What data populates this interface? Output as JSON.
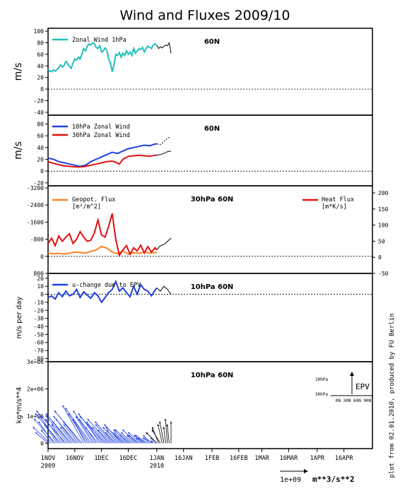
{
  "title": "Wind and Fluxes 2009/10",
  "credit": "plot from 02.01.2010, produced by FU Berlin",
  "x_axis": {
    "ticks": [
      "1NOV",
      "16NOV",
      "1DEC",
      "16DEC",
      "1JAN",
      "16JAN",
      "1FEB",
      "16FEB",
      "1MAR",
      "16MAR",
      "1APR",
      "16APR"
    ],
    "year_labels": [
      "2009",
      "2010"
    ]
  },
  "colors": {
    "cyan": "#22c0bc",
    "blue": "#2040e0",
    "red": "#e01010",
    "orange": "#ff8020",
    "black": "#000000"
  },
  "chart_data": [
    {
      "type": "line",
      "panel_label": "60N",
      "ylabel": "m/s",
      "ylim": [
        -45,
        105
      ],
      "yticks": [
        100,
        80,
        60,
        40,
        20,
        0,
        -20,
        -40
      ],
      "zero_line": "dashed",
      "legend": [
        "Zonal Wind 1hPa"
      ],
      "series": [
        {
          "name": "Zonal Wind 1hPa",
          "color": "cyan",
          "x": [
            0,
            1,
            2,
            3,
            4,
            5,
            6,
            7,
            8,
            9,
            10,
            11,
            12,
            13,
            14,
            15,
            16,
            17,
            18,
            19,
            20,
            21,
            22,
            23,
            24,
            25,
            26,
            27,
            28,
            29,
            30,
            31,
            32,
            33,
            34,
            35,
            36,
            37,
            38,
            39,
            40,
            41,
            42,
            43,
            44,
            45,
            46,
            47,
            48,
            49,
            50,
            51,
            52,
            53,
            54,
            55,
            56,
            57,
            58,
            59,
            60,
            61
          ],
          "values": [
            34,
            31,
            30,
            33,
            31,
            34,
            37,
            42,
            38,
            41,
            48,
            44,
            39,
            36,
            45,
            52,
            50,
            55,
            52,
            60,
            70,
            66,
            74,
            78,
            76,
            80,
            78,
            72,
            70,
            75,
            64,
            66,
            71,
            67,
            52,
            45,
            30,
            42,
            60,
            58,
            63,
            55,
            62,
            58,
            66,
            60,
            64,
            58,
            70,
            62,
            66,
            70,
            68,
            72,
            64,
            70,
            74,
            72,
            70,
            76,
            78,
            76
          ]
        },
        {
          "name": "forecast",
          "color": "black",
          "x": [
            61,
            62,
            63,
            64,
            65,
            66,
            67,
            68,
            69
          ],
          "values": [
            76,
            70,
            73,
            71,
            74,
            76,
            75,
            80,
            62
          ]
        }
      ]
    },
    {
      "type": "line",
      "panel_label": "60N",
      "ylabel": "m/s",
      "ylim": [
        -25,
        95
      ],
      "yticks": [
        80,
        60,
        40,
        20,
        0,
        -20
      ],
      "zero_line": "dashed",
      "legend": [
        "10hPa Zonal Wind",
        "30hPa Zonal Wind"
      ],
      "series": [
        {
          "name": "10hPa Zonal Wind",
          "color": "blue",
          "x": [
            0,
            3,
            6,
            9,
            12,
            15,
            18,
            21,
            24,
            27,
            30,
            33,
            36,
            39,
            42,
            45,
            48,
            51,
            54,
            57,
            60,
            61
          ],
          "values": [
            22,
            20,
            16,
            14,
            12,
            10,
            8,
            10,
            16,
            20,
            24,
            28,
            32,
            30,
            34,
            38,
            40,
            42,
            44,
            43,
            46,
            46
          ]
        },
        {
          "name": "30hPa Zonal Wind",
          "color": "red",
          "x": [
            0,
            3,
            6,
            9,
            12,
            15,
            18,
            21,
            24,
            27,
            30,
            33,
            36,
            38,
            40,
            42,
            45,
            48,
            51,
            54,
            57,
            60,
            61
          ],
          "values": [
            16,
            13,
            11,
            9,
            8,
            7,
            7,
            8,
            10,
            12,
            14,
            16,
            17,
            15,
            12,
            20,
            25,
            26,
            27,
            26,
            25,
            27,
            27
          ]
        },
        {
          "name": "10hPa forecast",
          "color": "black",
          "x": [
            61,
            63,
            65,
            67,
            69
          ],
          "values": [
            46,
            45,
            50,
            56,
            58
          ],
          "dash": true
        },
        {
          "name": "30hPa forecast",
          "color": "black",
          "x": [
            61,
            63,
            65,
            67,
            69
          ],
          "values": [
            27,
            28,
            30,
            33,
            34
          ]
        }
      ]
    },
    {
      "type": "line",
      "panel_label": "30hPa 60N",
      "ylim": [
        -3300,
        800
      ],
      "y_inverted": true,
      "yticks": [
        -3200,
        -2400,
        -1600,
        -800,
        0,
        800
      ],
      "yticks_right": [
        200,
        150,
        100,
        50,
        0,
        -50
      ],
      "legend": [
        "Geopot. Flux [m²/m²]",
        "Heat Flux [m*K/s]"
      ],
      "legend_text": {
        "geopot": [
          "Geopot. Flux",
          "[m²/m^2]"
        ],
        "heat": [
          "Heat Flux",
          "[m*K/s]"
        ]
      },
      "series": [
        {
          "name": "Geopot. Flux",
          "color": "orange",
          "x": [
            0,
            3,
            6,
            9,
            12,
            15,
            18,
            21,
            24,
            27,
            30,
            33,
            36,
            39,
            42,
            45,
            48,
            51,
            54,
            57,
            60,
            61
          ],
          "values": [
            -160,
            -120,
            -140,
            -110,
            -150,
            -200,
            -180,
            -150,
            -230,
            -300,
            -460,
            -380,
            -200,
            -120,
            -260,
            -100,
            -170,
            -140,
            -200,
            -150,
            -180,
            -200
          ]
        },
        {
          "name": "Heat Flux",
          "color": "red",
          "x": [
            0,
            2,
            4,
            6,
            8,
            10,
            12,
            14,
            16,
            18,
            20,
            22,
            24,
            26,
            28,
            30,
            32,
            34,
            36,
            38,
            40,
            42,
            44,
            46,
            48,
            50,
            52,
            54,
            56,
            58,
            60,
            61
          ],
          "values": [
            -600,
            -850,
            -500,
            -950,
            -700,
            -900,
            -1050,
            -600,
            -800,
            -1150,
            -900,
            -700,
            -750,
            -1100,
            -1700,
            -1000,
            -900,
            -1400,
            -2000,
            -800,
            -50,
            -300,
            -500,
            -100,
            -400,
            -250,
            -520,
            -160,
            -450,
            -200,
            -400,
            -300
          ]
        },
        {
          "name": "forecast",
          "color": "black",
          "x": [
            61,
            63,
            65,
            67,
            69
          ],
          "values": [
            -300,
            -500,
            -550,
            -700,
            -850
          ]
        }
      ]
    },
    {
      "type": "line",
      "panel_label": "10hPa 60N",
      "ylabel": "m/s per day",
      "ylim": [
        -84,
        26
      ],
      "yticks": [
        20,
        10,
        0,
        -10,
        -20,
        -30,
        -40,
        -50,
        -60,
        -70,
        -80
      ],
      "legend": [
        "u-change due to EPV"
      ],
      "series": [
        {
          "name": "u-change due to EPV",
          "color": "blue",
          "x": [
            0,
            2,
            4,
            6,
            8,
            10,
            12,
            14,
            16,
            18,
            20,
            22,
            24,
            26,
            28,
            30,
            32,
            34,
            36,
            38,
            40,
            42,
            44,
            46,
            48,
            50,
            52,
            54,
            56,
            58,
            60,
            61
          ],
          "values": [
            -4,
            -2,
            -6,
            2,
            -3,
            4,
            -2,
            0,
            6,
            -4,
            3,
            -1,
            -5,
            2,
            -2,
            -10,
            -4,
            2,
            6,
            16,
            4,
            8,
            2,
            -3,
            10,
            0,
            12,
            6,
            4,
            -2,
            5,
            8
          ]
        },
        {
          "name": "forecast",
          "color": "black",
          "x": [
            61,
            63,
            65,
            67,
            69
          ],
          "values": [
            8,
            4,
            10,
            6,
            0
          ]
        }
      ]
    },
    {
      "type": "vector",
      "panel_label": "10hPa 60N",
      "ylabel": "kg*m/s**4",
      "ylim": [
        -200000,
        3000000
      ],
      "yticks": [
        0,
        1000000,
        2000000,
        3000000
      ],
      "ytick_labels": [
        "0",
        "1e+06",
        "2e+06",
        "3e+06"
      ],
      "inset": {
        "title": "EPV",
        "ylabels": [
          "10hPa",
          "30hPa"
        ],
        "xlabel": "0N 30N 60N 90N"
      },
      "reference_vector": {
        "label": "1e+09",
        "units": "m**3/s**2"
      },
      "series": [
        {
          "name": "EPV",
          "color": "blue",
          "x": [
            0,
            1,
            2,
            3,
            4,
            5,
            6,
            7,
            8,
            9,
            10,
            11,
            12,
            13,
            14,
            15,
            16,
            17,
            18,
            19,
            20,
            21,
            22,
            23,
            24,
            25,
            26,
            27,
            28,
            29,
            30,
            31,
            32,
            33,
            34,
            35,
            36,
            37,
            38,
            39,
            40,
            41,
            42,
            43,
            44,
            45,
            46,
            47,
            48,
            49,
            50,
            51,
            52,
            53,
            54,
            55,
            56,
            57,
            58,
            59,
            60,
            61
          ],
          "u": [
            -6,
            -8,
            -5,
            -7,
            -10,
            -6,
            -9,
            -12,
            -8,
            -6,
            -14,
            -10,
            -8,
            -12,
            -6,
            -9,
            -11,
            -7,
            -8,
            -13,
            -10,
            -6,
            -9,
            -7,
            -12,
            -8,
            -10,
            -5,
            -9,
            -6,
            -11,
            -8,
            -12,
            -7,
            -10,
            -6,
            -8,
            -9,
            -5,
            -7,
            -6,
            -8,
            -4,
            -9,
            -6,
            -7,
            -5,
            -8,
            -6,
            -4,
            -7,
            -5,
            -6,
            -3,
            -5,
            -4,
            -6,
            -3,
            -4,
            -5,
            -2,
            -3
          ],
          "v": [
            400000,
            600000,
            500000,
            800000,
            900000,
            700000,
            1000000,
            1100000,
            900000,
            700000,
            1200000,
            1000000,
            800000,
            1100000,
            600000,
            900000,
            1000000,
            700000,
            800000,
            1200000,
            1400000,
            900000,
            1100000,
            800000,
            1300000,
            1000000,
            1200000,
            600000,
            900000,
            700000,
            1100000,
            800000,
            1000000,
            600000,
            900000,
            500000,
            700000,
            800000,
            400000,
            600000,
            500000,
            700000,
            300000,
            600000,
            400000,
            500000,
            300000,
            500000,
            400000,
            300000,
            500000,
            300000,
            400000,
            200000,
            300000,
            200000,
            300000,
            200000,
            300000,
            200000,
            100000,
            200000
          ]
        },
        {
          "name": "forecast",
          "color": "black",
          "x": [
            61,
            62,
            63,
            64,
            65,
            66,
            67,
            68,
            69
          ],
          "u": [
            -5,
            -3,
            -4,
            -2,
            -2,
            -1,
            -1,
            -1,
            0
          ],
          "v": [
            400000,
            600000,
            500000,
            700000,
            800000,
            600000,
            900000,
            700000,
            800000
          ]
        }
      ]
    }
  ]
}
